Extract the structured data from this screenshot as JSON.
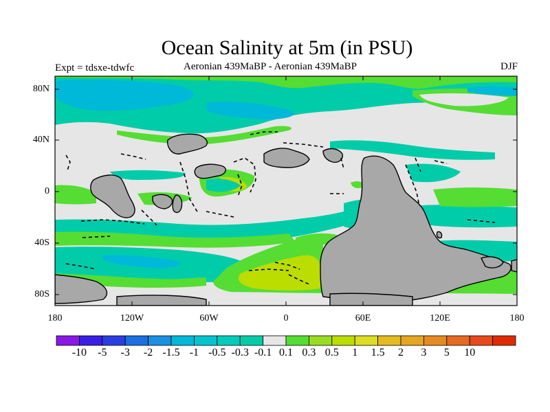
{
  "title": "Ocean Salinity at 5m (in PSU)",
  "subtitle_left": "Expt = tdsxe-tdwfc",
  "subtitle_center": "Aeronian 439MaBP - Aeronian 439MaBP",
  "subtitle_right": "DJF",
  "map": {
    "projection": "cylindrical equidistant",
    "field": "salinity anomaly at 5m",
    "units": "PSU",
    "lon_range": [
      -180,
      180
    ],
    "lat_range": [
      -90,
      90
    ],
    "x_tick_labels": [
      "180",
      "120W",
      "60W",
      "0",
      "60E",
      "120E",
      "180"
    ],
    "y_tick_labels": [
      "80N",
      "40N",
      "0",
      "40S",
      "80S"
    ],
    "colors": {
      "land": "#a8a8a8",
      "near_zero": "#e6e6e6",
      "neg_small": "#00ccaa",
      "neg_mid": "#00b8d8",
      "pos_small": "#55dd33",
      "pos_mid": "#bbdd00"
    }
  },
  "colorbar": {
    "colors": [
      "#8a17e6",
      "#3a1ee6",
      "#2a3ee0",
      "#1a70e0",
      "#1a90e0",
      "#00b8d8",
      "#00c4d0",
      "#00ccbb",
      "#00cca8",
      "#e6e6e6",
      "#55dd33",
      "#99dd22",
      "#bbdd00",
      "#dddd22",
      "#e6bb22",
      "#e6a522",
      "#e68a22",
      "#e66a22",
      "#e64a1a",
      "#e02b00"
    ],
    "labels": [
      "-10",
      "-5",
      "-3",
      "-2",
      "-1.5",
      "-1",
      "-0.5",
      "-0.3",
      "-0.1",
      "0.1",
      "0.3",
      "0.5",
      "1",
      "1.5",
      "2",
      "3",
      "5",
      "10"
    ]
  }
}
